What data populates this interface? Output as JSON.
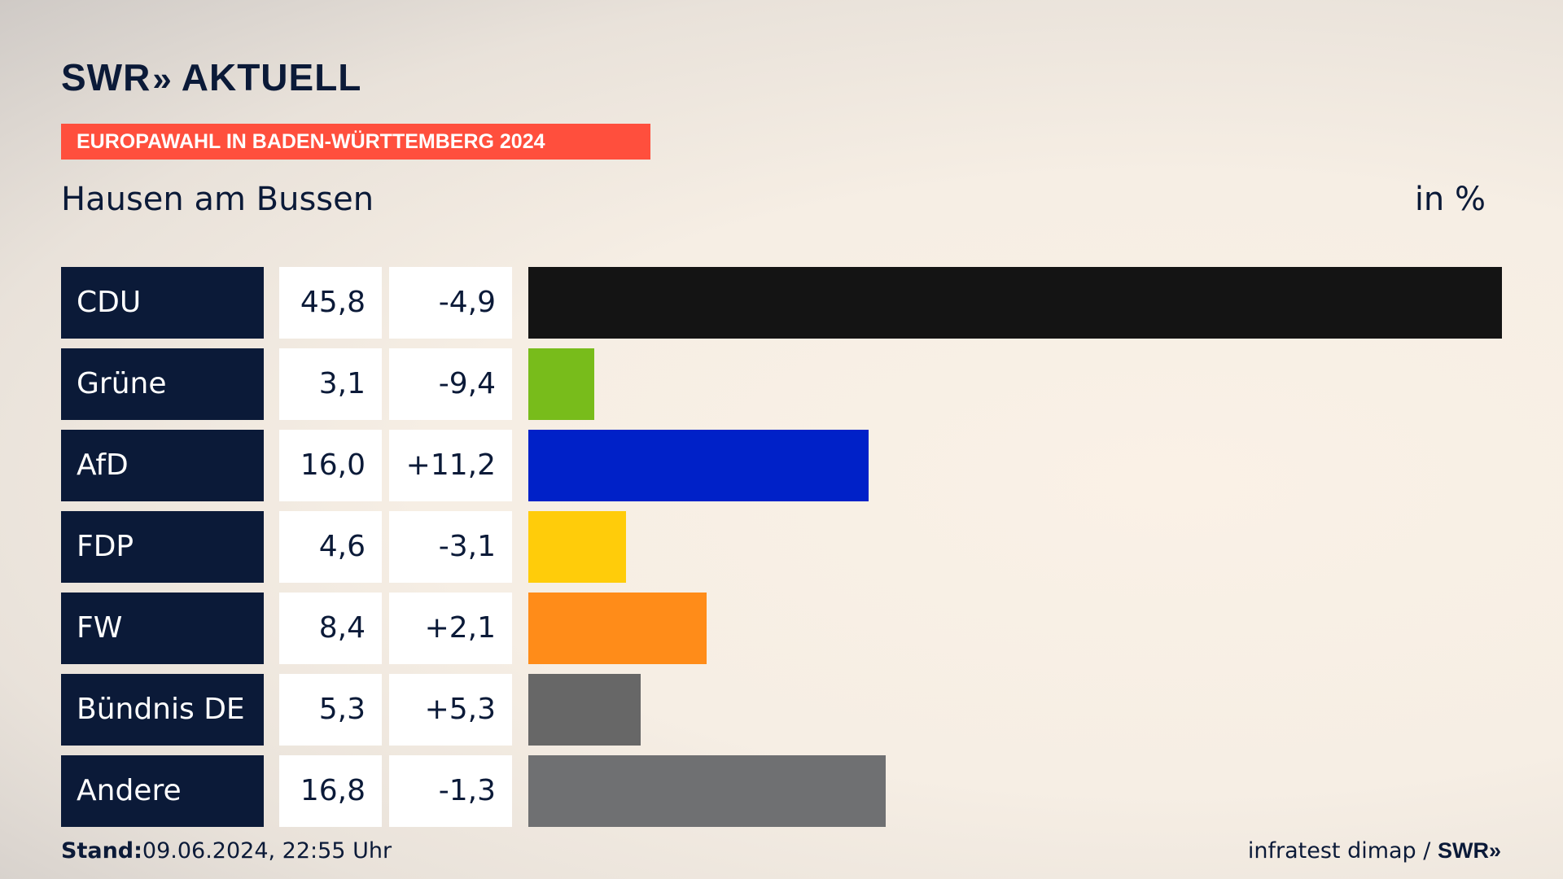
{
  "header": {
    "logo_brand": "SWR",
    "logo_chevrons": "»",
    "logo_word": "AKTUELL",
    "banner": "EUROPAWAHL IN BADEN-WÜRTTEMBERG 2024",
    "region": "Hausen am Bussen",
    "unit": "in %"
  },
  "chart_data": {
    "type": "bar",
    "orientation": "horizontal",
    "title": "Hausen am Bussen",
    "ylabel": "in %",
    "xlim": [
      0,
      45.8
    ],
    "categories": [
      "CDU",
      "Grüne",
      "AfD",
      "FDP",
      "FW",
      "Bündnis DE",
      "Andere"
    ],
    "values": [
      45.8,
      3.1,
      16.0,
      4.6,
      8.4,
      5.3,
      16.8
    ],
    "value_labels": [
      "45,8",
      "3,1",
      "16,0",
      "4,6",
      "8,4",
      "5,3",
      "16,8"
    ],
    "change_labels": [
      "-4,9",
      "-9,4",
      "+11,2",
      "-3,1",
      "+2,1",
      "+5,3",
      "-1,3"
    ],
    "colors": [
      "#141414",
      "#78bc1b",
      "#0021c8",
      "#ffcc0a",
      "#ff8c19",
      "#676767",
      "#6f7072"
    ]
  },
  "footer": {
    "stand_label": "Stand:",
    "stand_value": "09.06.2024, 22:55 Uhr",
    "source": "infratest dimap / ",
    "source_logo": "SWR",
    "source_chevrons": "»"
  }
}
